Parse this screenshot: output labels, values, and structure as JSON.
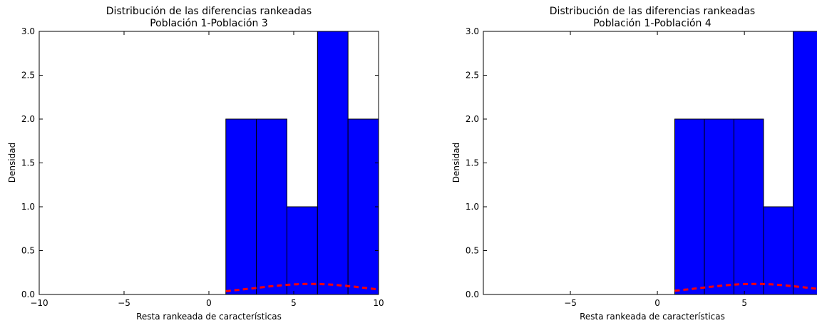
{
  "chart_data": [
    {
      "type": "bar",
      "title": "Distribución de las diferencias rankeadas",
      "subtitle": "Población 1-Población 3",
      "xlabel": "Resta rankeada de características",
      "ylabel": "Densidad",
      "xlim": [
        -10,
        10
      ],
      "ylim": [
        0,
        3.0
      ],
      "xticks": [
        -10,
        -5,
        0,
        5,
        10
      ],
      "xtick_labels": [
        "−10",
        "−5",
        "0",
        "5",
        "10"
      ],
      "yticks": [
        0.0,
        0.5,
        1.0,
        1.5,
        2.0,
        2.5,
        3.0
      ],
      "ytick_labels": [
        "0.0",
        "0.5",
        "1.0",
        "1.5",
        "2.0",
        "2.5",
        "3.0"
      ],
      "bins": [
        {
          "x0": 1.0,
          "x1": 2.8,
          "value": 2.0
        },
        {
          "x0": 2.8,
          "x1": 4.6,
          "value": 2.0
        },
        {
          "x0": 4.6,
          "x1": 6.4,
          "value": 1.0
        },
        {
          "x0": 6.4,
          "x1": 8.2,
          "value": 3.0
        },
        {
          "x0": 8.2,
          "x1": 10.0,
          "value": 2.0
        }
      ],
      "curve": {
        "style": "dashed",
        "mean": 6.0,
        "peak": 0.12,
        "sd": 3.3,
        "x_start": 1.0,
        "x_end": 10.0
      },
      "bar_color": "#0000ff",
      "curve_color": "#ff0000"
    },
    {
      "type": "bar",
      "title": "Distribución de las diferencias rankeadas",
      "subtitle": "Población 1-Población 4",
      "xlabel": "Resta rankeada de características",
      "ylabel": "Densidad",
      "xlim": [
        -10,
        9.5
      ],
      "ylim": [
        0,
        3.0
      ],
      "xticks": [
        -5,
        0,
        5
      ],
      "xtick_labels": [
        "−5",
        "0",
        "5"
      ],
      "yticks": [
        0.0,
        0.5,
        1.0,
        1.5,
        2.0,
        2.5,
        3.0
      ],
      "ytick_labels": [
        "0.0",
        "0.5",
        "1.0",
        "1.5",
        "2.0",
        "2.5",
        "3.0"
      ],
      "bins": [
        {
          "x0": 1.0,
          "x1": 2.7,
          "value": 2.0
        },
        {
          "x0": 2.7,
          "x1": 4.4,
          "value": 2.0
        },
        {
          "x0": 4.4,
          "x1": 6.1,
          "value": 2.0
        },
        {
          "x0": 6.1,
          "x1": 7.8,
          "value": 1.0
        },
        {
          "x0": 7.8,
          "x1": 9.5,
          "value": 3.0
        }
      ],
      "curve": {
        "style": "dashed",
        "mean": 5.6,
        "peak": 0.12,
        "sd": 3.2,
        "x_start": 1.0,
        "x_end": 9.5
      },
      "bar_color": "#0000ff",
      "curve_color": "#ff0000"
    }
  ]
}
